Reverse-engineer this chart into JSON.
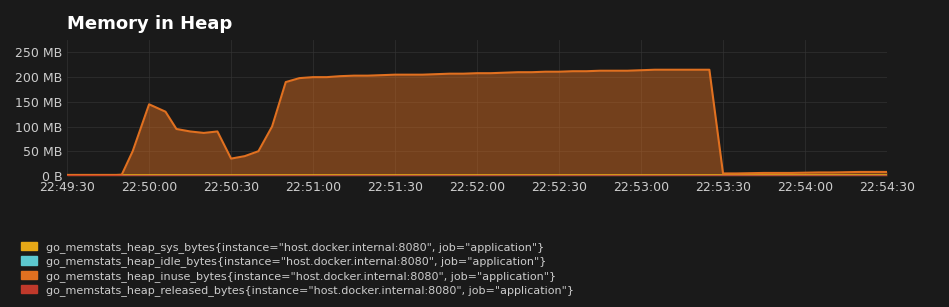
{
  "title": "Memory in Heap",
  "background_color": "#1a1a1a",
  "plot_bg_color": "#1a1a1a",
  "grid_color": "#333333",
  "text_color": "#cccccc",
  "title_fontsize": 13,
  "tick_fontsize": 9,
  "legend_fontsize": 8,
  "ylim": [
    0,
    275000000
  ],
  "yticks": [
    0,
    50000000,
    100000000,
    150000000,
    200000000,
    250000000
  ],
  "ytick_labels": [
    "0 B",
    "50 MB",
    "100 MB",
    "150 MB",
    "200 MB",
    "250 MB"
  ],
  "xtick_labels": [
    "22:49:30",
    "22:50:00",
    "22:50:30",
    "22:51:00",
    "22:51:30",
    "22:52:00",
    "22:52:30",
    "22:53:00",
    "22:53:30",
    "22:54:00",
    "22:54:30"
  ],
  "series": [
    {
      "name": "go_memstats_heap_sys_bytes{instance=\"host.docker.internal:8080\", job=\"application\"}",
      "color": "#e6a817",
      "linewidth": 1.2,
      "fill": false,
      "x": [
        0,
        10,
        20,
        30,
        40,
        50,
        60,
        70,
        80,
        90,
        100,
        110,
        120,
        130,
        140,
        150,
        160,
        170,
        180,
        190,
        200,
        210,
        220,
        230,
        240,
        250,
        260,
        270,
        280,
        290,
        300
      ],
      "y": [
        2000000,
        2000000,
        2000000,
        2000000,
        2000000,
        2000000,
        2000000,
        2000000,
        2000000,
        2000000,
        2000000,
        2000000,
        2000000,
        2000000,
        2000000,
        2000000,
        2000000,
        2000000,
        2000000,
        2000000,
        2000000,
        2000000,
        2000000,
        2000000,
        2000000,
        2000000,
        2000000,
        2000000,
        2000000,
        2000000,
        2000000
      ]
    },
    {
      "name": "go_memstats_heap_idle_bytes{instance=\"host.docker.internal:8080\", job=\"application\"}",
      "color": "#5cc8d0",
      "linewidth": 1.2,
      "fill": false,
      "x": [
        0,
        300
      ],
      "y": [
        0,
        0
      ]
    },
    {
      "name": "go_memstats_heap_inuse_bytes{instance=\"host.docker.internal:8080\", job=\"application\"}",
      "color": "#e07020",
      "linewidth": 1.5,
      "fill": true,
      "x": [
        0,
        10,
        18,
        20,
        24,
        30,
        36,
        40,
        45,
        50,
        55,
        60,
        65,
        70,
        75,
        80,
        85,
        90,
        95,
        100,
        105,
        110,
        115,
        120,
        125,
        130,
        135,
        140,
        145,
        150,
        155,
        160,
        165,
        170,
        175,
        180,
        185,
        190,
        195,
        200,
        205,
        210,
        215,
        220,
        225,
        230,
        235,
        240,
        245,
        250,
        255,
        260,
        265,
        270,
        275,
        280,
        285,
        290,
        295,
        300
      ],
      "y": [
        2000000,
        2000000,
        2000000,
        2500000,
        50000000,
        145000000,
        130000000,
        95000000,
        90000000,
        87000000,
        90000000,
        35000000,
        40000000,
        50000000,
        100000000,
        190000000,
        198000000,
        200000000,
        200000000,
        202000000,
        203000000,
        203000000,
        204000000,
        205000000,
        205000000,
        205000000,
        206000000,
        207000000,
        207000000,
        208000000,
        208000000,
        209000000,
        210000000,
        210000000,
        211000000,
        211000000,
        212000000,
        212000000,
        213000000,
        213000000,
        213000000,
        214000000,
        215000000,
        215000000,
        215000000,
        215000000,
        215000000,
        5000000,
        5000000,
        5500000,
        6000000,
        6000000,
        6000000,
        6500000,
        7000000,
        7000000,
        7500000,
        8000000,
        8000000,
        8000000
      ]
    },
    {
      "name": "go_memstats_heap_released_bytes{instance=\"host.docker.internal:8080\", job=\"application\"}",
      "color": "#c0392b",
      "linewidth": 1.2,
      "fill": false,
      "x": [
        0,
        300
      ],
      "y": [
        0,
        0
      ]
    }
  ],
  "legend_entries": [
    {
      "label": "go_memstats_heap_sys_bytes{instance=\"host.docker.internal:8080\", job=\"application\"}",
      "color": "#e6a817"
    },
    {
      "label": "go_memstats_heap_idle_bytes{instance=\"host.docker.internal:8080\", job=\"application\"}",
      "color": "#5cc8d0"
    },
    {
      "label": "go_memstats_heap_inuse_bytes{instance=\"host.docker.internal:8080\", job=\"application\"}",
      "color": "#e07020"
    },
    {
      "label": "go_memstats_heap_released_bytes{instance=\"host.docker.internal:8080\", job=\"application\"}",
      "color": "#c0392b"
    }
  ]
}
